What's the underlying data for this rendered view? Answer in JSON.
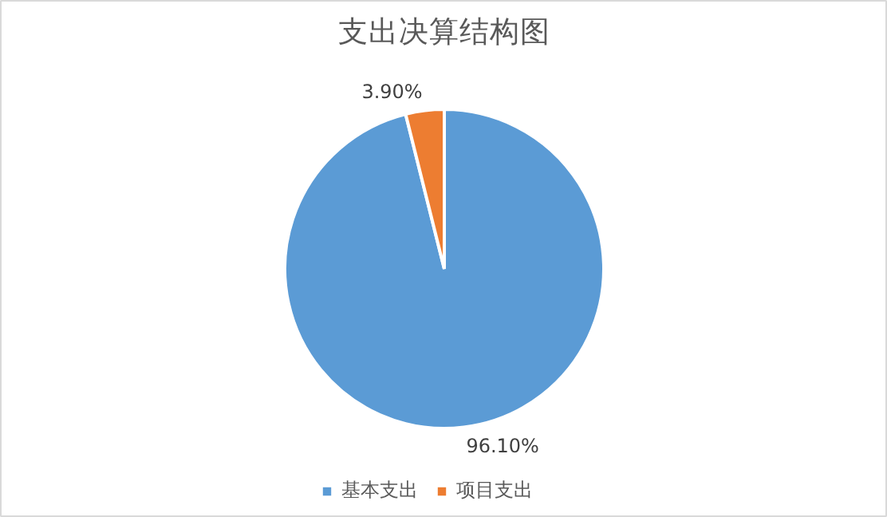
{
  "chart_data": {
    "type": "pie",
    "title": "支出决算结构图",
    "categories": [
      "基本支出",
      "项目支出"
    ],
    "values": [
      96.1,
      3.9
    ],
    "colors": [
      "#5b9bd5",
      "#ed7d31"
    ],
    "value_labels": [
      "96.10%",
      "3.90%"
    ],
    "legend": "bottom"
  }
}
